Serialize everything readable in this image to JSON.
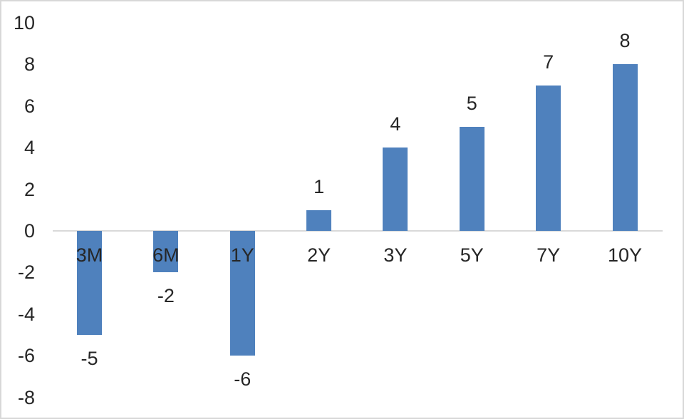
{
  "chart_data": {
    "type": "bar",
    "title": "",
    "categories": [
      "3M",
      "6M",
      "1Y",
      "2Y",
      "3Y",
      "5Y",
      "7Y",
      "10Y"
    ],
    "values": [
      -5,
      -2,
      -6,
      1,
      4,
      5,
      7,
      8
    ],
    "data_labels": [
      "-5",
      "-2",
      "-6",
      "1",
      "4",
      "5",
      "7",
      "8"
    ],
    "y_ticks": [
      "10",
      "8",
      "6",
      "4",
      "2",
      "0",
      "-2",
      "-4",
      "-6",
      "-8"
    ],
    "ylim": [
      -8,
      10
    ],
    "xlabel": "",
    "ylabel": "",
    "grid": false,
    "legend": "none",
    "data_label_position": "outside-end",
    "category_label_position": "below-zero-line",
    "colors": {
      "bar": "#4F81BD",
      "axis_line": "#D9D9D9",
      "text": "#262626",
      "background": "#FFFFFF",
      "border": "#D8D8D8"
    }
  }
}
